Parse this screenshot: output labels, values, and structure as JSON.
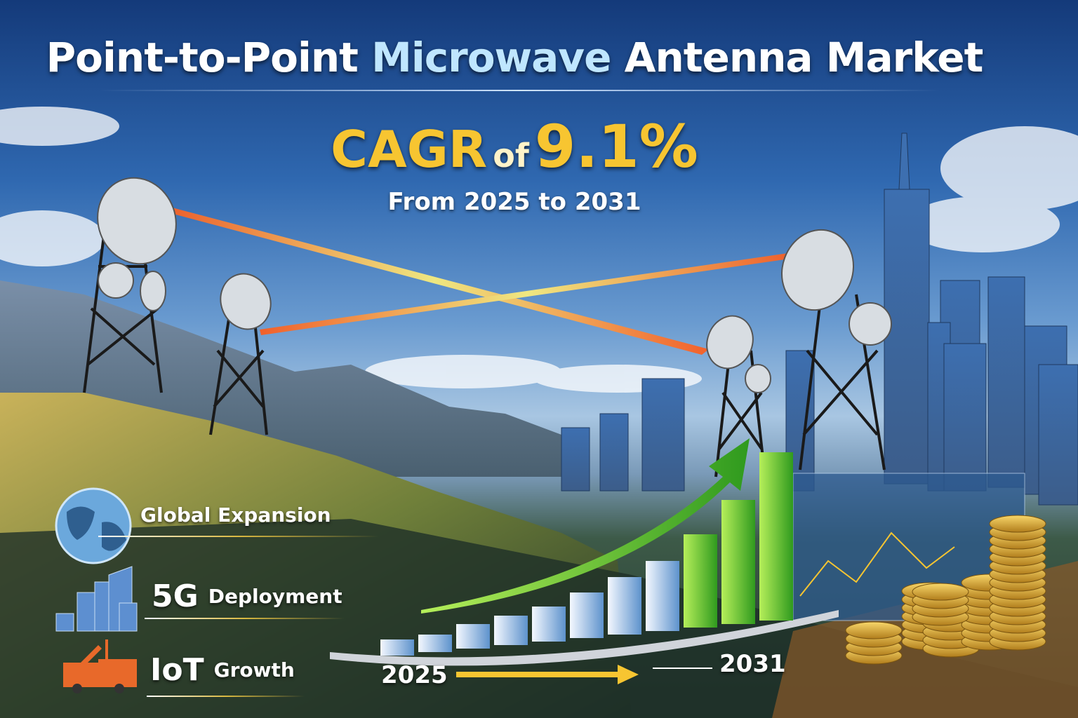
{
  "header": {
    "title_part1": "Point-to-Point",
    "title_part2": "Microwave",
    "title_part3": "Antenna Market",
    "cagr_label": "CAGR",
    "cagr_of": "of",
    "cagr_value": "9.1%",
    "period": "From 2025 to 2031"
  },
  "features": [
    {
      "icon": "globe-icon",
      "label_strong": "",
      "label": "Global Expansion"
    },
    {
      "icon": "buildings-icon",
      "label_strong": "5G",
      "label": "Deployment"
    },
    {
      "icon": "industrial-truck-icon",
      "label_strong": "IoT",
      "label": "Growth"
    }
  ],
  "timeline": {
    "start_year": "2025",
    "end_year": "2031"
  },
  "colors": {
    "accent_gold": "#f7c531",
    "accent_light_blue": "#bfe6ff",
    "bar_green": "#5cc830",
    "bar_blue": "#8ab8e6",
    "beam": "#ff8a2a"
  }
}
